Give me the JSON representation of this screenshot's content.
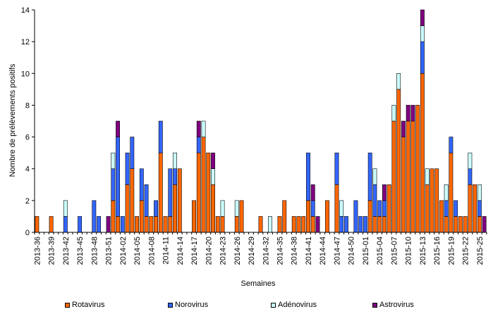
{
  "chart_data": {
    "type": "bar",
    "stacked": true,
    "xlabel": "Semaines",
    "ylabel": "Nombre de prélèvements positifs",
    "ylim": [
      0,
      14
    ],
    "yticks": [
      0,
      2,
      4,
      6,
      8,
      10,
      12,
      14
    ],
    "grid": false,
    "legend_position": "bottom",
    "categories": [
      "2013-36",
      "2013-37",
      "2013-38",
      "2013-39",
      "2013-40",
      "2013-41",
      "2013-42",
      "2013-43",
      "2013-44",
      "2013-45",
      "2013-46",
      "2013-47",
      "2013-48",
      "2013-49",
      "2013-50",
      "2013-51",
      "2013-52",
      "2014-01",
      "2014-02",
      "2014-03",
      "2014-04",
      "2014-05",
      "2014-06",
      "2014-07",
      "2014-08",
      "2014-09",
      "2014-10",
      "2014-11",
      "2014-12",
      "2014-13",
      "2014-14",
      "2014-15",
      "2014-16",
      "2014-17",
      "2014-18",
      "2014-19",
      "2014-20",
      "2014-21",
      "2014-22",
      "2014-23",
      "2014-24",
      "2014-25",
      "2014-26",
      "2014-27",
      "2014-28",
      "2014-29",
      "2014-30",
      "2014-31",
      "2014-32",
      "2014-33",
      "2014-34",
      "2014-35",
      "2014-36",
      "2014-37",
      "2014-38",
      "2014-39",
      "2014-40",
      "2014-41",
      "2014-42",
      "2014-43",
      "2014-44",
      "2014-45",
      "2014-46",
      "2014-47",
      "2014-48",
      "2014-49",
      "2014-50",
      "2014-51",
      "2014-52",
      "2015-01",
      "2015-02",
      "2015-03",
      "2015-04",
      "2015-05",
      "2015-06",
      "2015-07",
      "2015-08",
      "2015-09",
      "2015-10",
      "2015-11",
      "2015-12",
      "2015-13",
      "2015-14",
      "2015-15",
      "2015-16",
      "2015-17",
      "2015-18",
      "2015-19",
      "2015-20",
      "2015-21",
      "2015-22",
      "2015-23",
      "2015-24",
      "2015-25",
      "2015-26"
    ],
    "tick_labels": [
      "2013-36",
      "2013-39",
      "2013-42",
      "2013-45",
      "2013-48",
      "2013-51",
      "2014-02",
      "2014-05",
      "2014-08",
      "2014-11",
      "2014-14",
      "2014-17",
      "2014-20",
      "2014-23",
      "2014-26",
      "2014-29",
      "2014-32",
      "2014-35",
      "2014-38",
      "2014-41",
      "2014-44",
      "2014-47",
      "2014-50",
      "2015-01",
      "2015-04",
      "2015-07",
      "2015-10",
      "2015-13",
      "2015-16",
      "2015-19",
      "2015-22",
      "2015-25"
    ],
    "series": [
      {
        "name": "Rotavirus",
        "color": "#ff6600",
        "values": [
          1,
          0,
          0,
          1,
          0,
          0,
          0,
          0,
          0,
          0,
          0,
          0,
          0,
          0,
          0,
          0,
          2,
          1,
          0,
          3,
          4,
          1,
          2,
          1,
          1,
          1,
          5,
          1,
          1,
          3,
          4,
          0,
          0,
          2,
          5,
          6,
          5,
          3,
          1,
          1,
          0,
          0,
          1,
          2,
          0,
          0,
          0,
          1,
          0,
          0,
          0,
          1,
          2,
          0,
          1,
          1,
          1,
          2,
          1,
          0,
          0,
          2,
          0,
          3,
          0,
          0,
          0,
          0,
          0,
          0,
          2,
          1,
          1,
          1,
          3,
          7,
          9,
          6,
          7,
          7,
          8,
          10,
          3,
          4,
          4,
          2,
          1,
          5,
          1,
          1,
          1,
          3,
          3,
          1,
          0
        ]
      },
      {
        "name": "Norovirus",
        "color": "#3366ff",
        "values": [
          0,
          0,
          0,
          0,
          0,
          0,
          1,
          0,
          0,
          1,
          0,
          0,
          2,
          1,
          0,
          0,
          2,
          5,
          1,
          2,
          2,
          0,
          2,
          2,
          0,
          1,
          2,
          0,
          3,
          1,
          0,
          0,
          0,
          0,
          1,
          0,
          0,
          0,
          0,
          0,
          0,
          0,
          0,
          0,
          0,
          0,
          0,
          0,
          0,
          0,
          0,
          0,
          0,
          0,
          0,
          0,
          0,
          3,
          1,
          0,
          0,
          0,
          0,
          2,
          1,
          1,
          0,
          2,
          1,
          1,
          3,
          2,
          1,
          1,
          0,
          0,
          0,
          0,
          0,
          0,
          0,
          2,
          0,
          0,
          0,
          0,
          1,
          1,
          1,
          0,
          0,
          1,
          0,
          1,
          0
        ]
      },
      {
        "name": "Adénovirus",
        "color": "#ccffff",
        "values": [
          0,
          0,
          0,
          0,
          0,
          0,
          1,
          0,
          0,
          0,
          0,
          0,
          0,
          0,
          0,
          0,
          1,
          0,
          0,
          0,
          0,
          0,
          0,
          0,
          0,
          0,
          0,
          0,
          0,
          1,
          0,
          0,
          0,
          0,
          0,
          1,
          0,
          1,
          0,
          1,
          0,
          0,
          1,
          0,
          0,
          0,
          0,
          0,
          0,
          1,
          0,
          0,
          0,
          0,
          0,
          0,
          0,
          0,
          0,
          0,
          0,
          0,
          0,
          0,
          1,
          0,
          0,
          0,
          0,
          0,
          0,
          1,
          0,
          0,
          0,
          1,
          1,
          0,
          0,
          0,
          0,
          1,
          1,
          0,
          0,
          0,
          1,
          0,
          0,
          0,
          0,
          1,
          0,
          1,
          0
        ]
      },
      {
        "name": "Astrovirus",
        "color": "#800080",
        "values": [
          0,
          0,
          0,
          0,
          0,
          0,
          0,
          0,
          0,
          0,
          0,
          0,
          0,
          0,
          0,
          1,
          0,
          1,
          0,
          0,
          0,
          0,
          0,
          0,
          0,
          0,
          0,
          0,
          0,
          0,
          0,
          0,
          0,
          0,
          1,
          0,
          0,
          1,
          0,
          0,
          0,
          0,
          0,
          0,
          0,
          0,
          0,
          0,
          0,
          0,
          0,
          0,
          0,
          0,
          0,
          0,
          0,
          0,
          1,
          1,
          0,
          0,
          0,
          0,
          0,
          0,
          0,
          0,
          0,
          0,
          0,
          0,
          0,
          1,
          0,
          0,
          0,
          1,
          1,
          1,
          0,
          1,
          0,
          0,
          0,
          0,
          0,
          0,
          0,
          0,
          0,
          0,
          0,
          0,
          1
        ]
      }
    ]
  }
}
